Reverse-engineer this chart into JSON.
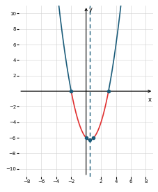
{
  "title": "",
  "xlabel": "x",
  "ylabel": "y",
  "xlim": [
    -9,
    9
  ],
  "ylim": [
    -11,
    11
  ],
  "xticks": [
    -8,
    -6,
    -4,
    -2,
    2,
    4,
    6,
    8
  ],
  "yticks": [
    -10,
    -8,
    -6,
    -4,
    -2,
    2,
    4,
    6,
    8,
    10
  ],
  "vertex": [
    0.5,
    -6.25
  ],
  "axis_of_symmetry": 0.5,
  "parabola_a": 1,
  "parabola_b": -1,
  "parabola_c": -6,
  "x_left_end": -4.16,
  "x_right_end": 5.16,
  "x_red_start": -2,
  "x_red_end": 3,
  "dot_points": [
    [
      -2,
      0
    ],
    [
      3,
      0
    ],
    [
      0,
      -6
    ],
    [
      1,
      -6
    ],
    [
      0.5,
      -6.25
    ]
  ],
  "parabola_color_upper": "#1b5c7a",
  "parabola_color_lower": "#e03030",
  "dashed_line_color": "#1b5c7a",
  "dot_color": "#1b5c7a",
  "background_color": "#ffffff",
  "grid_color": "#d0d0d0",
  "axis_color": "#000000",
  "figsize": [
    2.27,
    2.76
  ],
  "dpi": 100
}
